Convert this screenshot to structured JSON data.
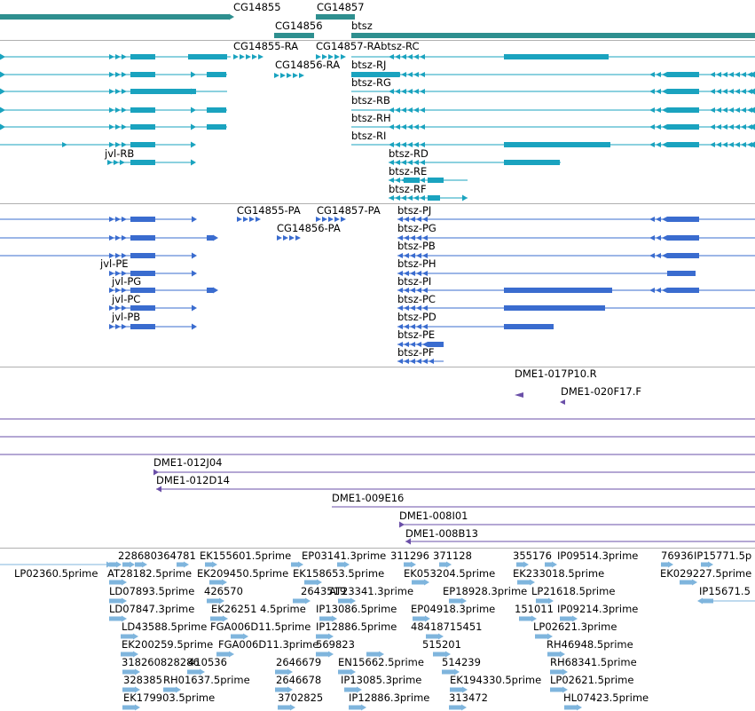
{
  "colors": {
    "gene": "#2e8f8f",
    "flybase_transcript": "#1aa3bf",
    "refseq_transcript": "#3a6ccf",
    "cdna_clone": "#6a4fa8",
    "est": "#7fb5dd",
    "divider": "#b0b0b0"
  },
  "gene_labels": [
    "CG14855",
    "CG14857",
    "CG14856",
    "btsz"
  ],
  "flybase_transcript_labels": [
    "CG14855-RA",
    "CG14857-RAbtsz-RC",
    "CG14856-RA",
    "btsz-RJ",
    "btsz-RG",
    "btsz-RB",
    "btsz-RH",
    "btsz-RI",
    "jvl-RB",
    "btsz-RD",
    "btsz-RE",
    "btsz-RF"
  ],
  "refseq_transcript_labels": [
    "CG14855-PA",
    "CG14857-PA",
    "CG14856-PA",
    "btsz-PJ",
    "btsz-PG",
    "btsz-PB",
    "jvl-PE",
    "btsz-PH",
    "jvl-PG",
    "btsz-PI",
    "jvl-PC",
    "btsz-PC",
    "jvl-PB",
    "btsz-PD",
    "btsz-PE",
    "btsz-PF"
  ],
  "clone_labels": [
    "DME1-017P10.R",
    "DME1-020F17.F",
    "DME1-012J04",
    "DME1-012D14",
    "DME1-009E16",
    "DME1-008I01",
    "DME1-008B13"
  ],
  "est_labels": [
    "228680364781",
    "EK155601.5prime",
    "EP03141.3prime",
    "311296",
    "371128",
    "355176",
    "IP09514.3prime",
    "76936",
    "IP15771.5p",
    "LP02360.5prime",
    "AT28182.5prime",
    "EK209450.5prime",
    "EK158653.5prime",
    "EK053204.5prime",
    "EK233018.5prime",
    "EK029227.5prime",
    "LD07893.5prime",
    "426570",
    "2643519",
    "AT23341.3prime",
    "EP18928.3prime",
    "LP21618.5prime",
    "IP15671.5",
    "LD07847.3prime",
    "EK26251 4.5prime",
    "IP13086.5prime",
    "EP04918.3prime",
    "151011",
    "IP09214.3prime",
    "LD43588.5prime",
    "FGA006D11.5prime",
    "IP12886.5prime",
    "48418715451",
    "LP02621.3prime",
    "EK200259.5prime",
    "FGA006D11.3prime",
    "569823",
    "515201",
    "RH46948.5prime",
    "318260828286",
    "410536",
    "2646679",
    "EN15662.5prime",
    "514239",
    "RH68341.5prime",
    "328385",
    "RH01637.5prime",
    "2646678",
    "IP13085.3prime",
    "EK194330.5prime",
    "LP02621.5prime",
    "EK179903.5prime",
    "3702825",
    "IP12886.3prime",
    "313472",
    "HL07423.5prime"
  ]
}
